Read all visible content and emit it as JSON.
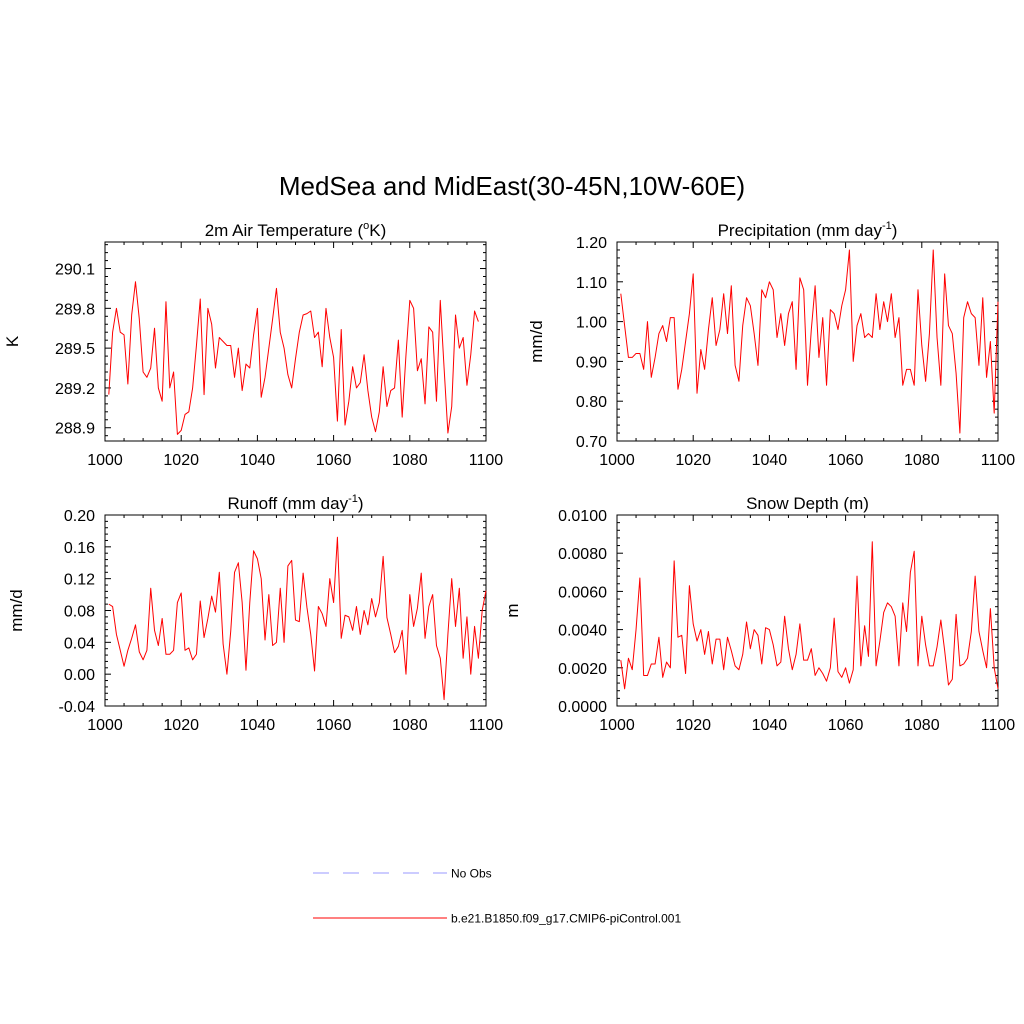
{
  "figure": {
    "title": "MedSea and MidEast(30-45N,10W-60E)",
    "line_color": "#ff0000",
    "obs_color": "#9999ff"
  },
  "legend": {
    "entries": [
      {
        "label": "No Obs",
        "style": "dashed",
        "color": "#9999ff"
      },
      {
        "label": "b.e21.B1850.f09_g17.CMIP6-piControl.001",
        "style": "solid",
        "color": "#ff0000"
      }
    ]
  },
  "chart_data": [
    {
      "id": "temp",
      "type": "line",
      "title_parts": [
        "2m Air Temperature (",
        "o",
        "K)"
      ],
      "title_sup_index": 1,
      "ylabel": "K",
      "xlim": [
        1000,
        1100
      ],
      "ylim": [
        288.8,
        290.3
      ],
      "xticks": [
        1000,
        1020,
        1040,
        1060,
        1080,
        1100
      ],
      "xtick_labels": [
        "1000",
        "1020",
        "1040",
        "1060",
        "1080",
        "1100"
      ],
      "yticks": [
        288.9,
        289.2,
        289.5,
        289.8,
        290.1
      ],
      "ytick_labels": [
        "288.9",
        "289.2",
        "289.5",
        "289.8",
        "290.1"
      ],
      "x_start": 1001,
      "values": [
        289.15,
        289.62,
        289.8,
        289.62,
        289.6,
        289.23,
        289.75,
        290.0,
        289.72,
        289.32,
        289.28,
        289.35,
        289.65,
        289.2,
        289.1,
        289.85,
        289.2,
        289.32,
        288.85,
        288.88,
        289.0,
        289.02,
        289.2,
        289.52,
        289.87,
        289.15,
        289.8,
        289.68,
        289.35,
        289.58,
        289.55,
        289.52,
        289.52,
        289.28,
        289.5,
        289.18,
        289.38,
        289.35,
        289.6,
        289.8,
        289.13,
        289.28,
        289.5,
        289.72,
        289.95,
        289.62,
        289.5,
        289.3,
        289.2,
        289.42,
        289.62,
        289.75,
        289.76,
        289.78,
        289.58,
        289.62,
        289.36,
        289.8,
        289.58,
        289.43,
        288.95,
        289.64,
        288.92,
        289.1,
        289.36,
        289.2,
        289.24,
        289.45,
        289.18,
        288.98,
        288.87,
        289.02,
        289.36,
        289.06,
        289.18,
        289.2,
        289.56,
        288.98,
        289.45,
        289.86,
        289.8,
        289.33,
        289.42,
        289.08,
        289.66,
        289.62,
        289.1,
        289.86,
        289.35,
        288.86,
        289.06,
        289.75,
        289.5,
        289.58,
        289.22,
        289.45,
        289.78,
        289.7
      ]
    },
    {
      "id": "precip",
      "type": "line",
      "title_parts": [
        "Precipitation (mm day",
        "-1",
        ")"
      ],
      "title_sup_index": 1,
      "ylabel": "mm/d",
      "xlim": [
        1000,
        1100
      ],
      "ylim": [
        0.7,
        1.2
      ],
      "xticks": [
        1000,
        1020,
        1040,
        1060,
        1080,
        1100
      ],
      "xtick_labels": [
        "1000",
        "1020",
        "1040",
        "1060",
        "1080",
        "1100"
      ],
      "yticks": [
        0.7,
        0.8,
        0.9,
        1.0,
        1.1,
        1.2
      ],
      "ytick_labels": [
        "0.70",
        "0.80",
        "0.90",
        "1.00",
        "1.10",
        "1.20"
      ],
      "x_start": 1001,
      "values": [
        1.07,
        0.99,
        0.91,
        0.91,
        0.92,
        0.92,
        0.88,
        1.0,
        0.86,
        0.91,
        0.97,
        0.99,
        0.95,
        1.01,
        1.01,
        0.83,
        0.88,
        0.95,
        1.02,
        1.12,
        0.82,
        0.93,
        0.88,
        0.98,
        1.06,
        0.94,
        0.98,
        1.07,
        0.97,
        1.09,
        0.89,
        0.85,
        0.99,
        1.06,
        1.04,
        0.97,
        0.89,
        1.08,
        1.06,
        1.1,
        1.08,
        0.96,
        1.02,
        0.94,
        1.02,
        1.05,
        0.88,
        1.11,
        1.08,
        0.84,
        0.98,
        1.09,
        0.91,
        1.01,
        0.84,
        1.03,
        1.02,
        0.98,
        1.04,
        1.08,
        1.18,
        0.9,
        0.99,
        1.02,
        0.96,
        0.97,
        0.96,
        1.07,
        0.98,
        1.05,
        1.0,
        1.07,
        0.96,
        1.01,
        0.84,
        0.88,
        0.88,
        0.84,
        1.08,
        0.94,
        0.85,
        0.97,
        1.18,
        0.96,
        0.84,
        1.12,
        0.99,
        0.97,
        0.87,
        0.72,
        1.01,
        1.05,
        1.02,
        1.01,
        0.89,
        1.06,
        0.86,
        0.95,
        0.77,
        1.05
      ]
    },
    {
      "id": "runoff",
      "type": "line",
      "title_parts": [
        "Runoff (mm day",
        "-1",
        ")"
      ],
      "title_sup_index": 1,
      "ylabel": "mm/d",
      "xlim": [
        1000,
        1100
      ],
      "ylim": [
        -0.04,
        0.2
      ],
      "xticks": [
        1000,
        1020,
        1040,
        1060,
        1080,
        1100
      ],
      "xtick_labels": [
        "1000",
        "1020",
        "1040",
        "1060",
        "1080",
        "1100"
      ],
      "yticks": [
        -0.04,
        0.0,
        0.04,
        0.08,
        0.12,
        0.16,
        0.2
      ],
      "ytick_labels": [
        "-0.04",
        "0.00",
        "0.04",
        "0.08",
        "0.12",
        "0.16",
        "0.20"
      ],
      "x_start": 1001,
      "values": [
        0.088,
        0.085,
        0.05,
        0.03,
        0.01,
        0.03,
        0.045,
        0.062,
        0.028,
        0.018,
        0.03,
        0.108,
        0.055,
        0.036,
        0.07,
        0.025,
        0.025,
        0.03,
        0.09,
        0.102,
        0.03,
        0.033,
        0.018,
        0.025,
        0.092,
        0.046,
        0.07,
        0.098,
        0.078,
        0.128,
        0.038,
        0.0,
        0.054,
        0.128,
        0.14,
        0.09,
        0.005,
        0.09,
        0.155,
        0.145,
        0.12,
        0.043,
        0.1,
        0.036,
        0.04,
        0.108,
        0.04,
        0.136,
        0.143,
        0.068,
        0.066,
        0.127,
        0.084,
        0.05,
        0.004,
        0.085,
        0.076,
        0.06,
        0.12,
        0.09,
        0.172,
        0.045,
        0.074,
        0.072,
        0.055,
        0.085,
        0.05,
        0.08,
        0.062,
        0.095,
        0.072,
        0.09,
        0.148,
        0.071,
        0.05,
        0.027,
        0.035,
        0.055,
        0.0,
        0.1,
        0.06,
        0.083,
        0.127,
        0.045,
        0.085,
        0.1,
        0.036,
        0.02,
        -0.032,
        0.05,
        0.12,
        0.06,
        0.108,
        0.02,
        0.072,
        0.0,
        0.06,
        0.02,
        0.08,
        0.105
      ]
    },
    {
      "id": "snow",
      "type": "line",
      "title_parts": [
        "Snow Depth (m)"
      ],
      "title_sup_index": -1,
      "ylabel": "m",
      "xlim": [
        1000,
        1100
      ],
      "ylim": [
        0.0,
        0.01
      ],
      "xticks": [
        1000,
        1020,
        1040,
        1060,
        1080,
        1100
      ],
      "xtick_labels": [
        "1000",
        "1020",
        "1040",
        "1060",
        "1080",
        "1100"
      ],
      "yticks": [
        0.0,
        0.002,
        0.004,
        0.006,
        0.008,
        0.01
      ],
      "ytick_labels": [
        "0.0000",
        "0.0020",
        "0.0040",
        "0.0060",
        "0.0080",
        "0.0100"
      ],
      "x_start": 1001,
      "values": [
        0.0024,
        0.0009,
        0.0025,
        0.0019,
        0.004,
        0.0067,
        0.0016,
        0.0016,
        0.0022,
        0.0022,
        0.0036,
        0.0015,
        0.0023,
        0.002,
        0.0076,
        0.0036,
        0.0037,
        0.0017,
        0.0063,
        0.0043,
        0.0034,
        0.004,
        0.0027,
        0.0039,
        0.0022,
        0.0035,
        0.0035,
        0.0019,
        0.0036,
        0.0029,
        0.0021,
        0.0019,
        0.0027,
        0.0044,
        0.003,
        0.004,
        0.0037,
        0.0022,
        0.0041,
        0.004,
        0.0032,
        0.0021,
        0.0023,
        0.0047,
        0.003,
        0.0019,
        0.0027,
        0.0043,
        0.0024,
        0.0024,
        0.003,
        0.0016,
        0.002,
        0.0017,
        0.0013,
        0.002,
        0.0046,
        0.0018,
        0.0015,
        0.002,
        0.0012,
        0.0019,
        0.0068,
        0.0021,
        0.0042,
        0.0026,
        0.0086,
        0.0021,
        0.0034,
        0.0049,
        0.0054,
        0.0052,
        0.0047,
        0.0021,
        0.0054,
        0.0039,
        0.007,
        0.0081,
        0.0021,
        0.0047,
        0.0032,
        0.0021,
        0.0021,
        0.0031,
        0.0045,
        0.0029,
        0.0011,
        0.0014,
        0.0048,
        0.0021,
        0.0022,
        0.0025,
        0.0039,
        0.0068,
        0.0039,
        0.0029,
        0.002,
        0.0051,
        0.002,
        0.0009
      ]
    }
  ]
}
